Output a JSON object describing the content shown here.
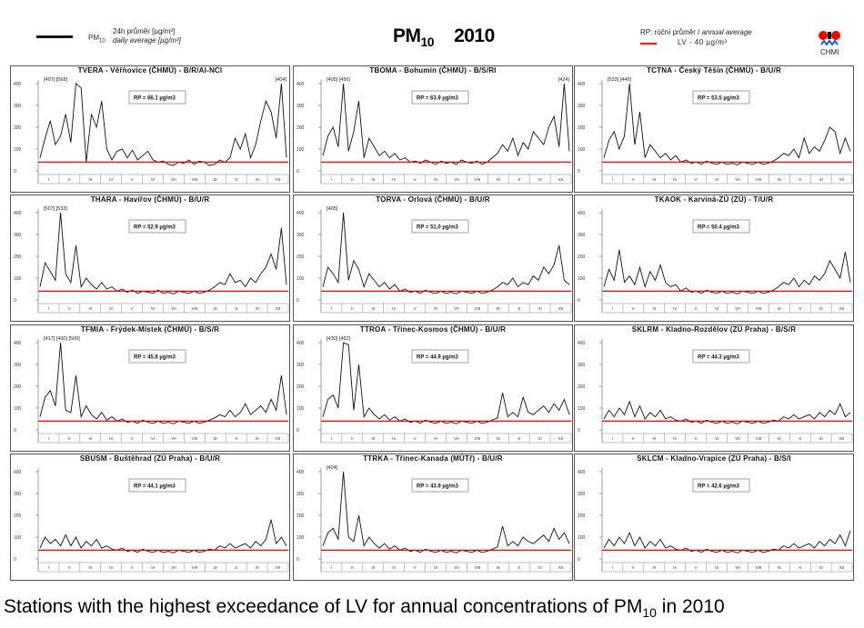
{
  "header": {
    "legend_series_label": "PM",
    "legend_series_sub": "10",
    "legend_cz": "24h průměr [µg/m³]",
    "legend_en": "daily average [µg/m³]",
    "title_main": "PM",
    "title_sub": "10",
    "title_year": "2010",
    "rp_label_cz": "RP: roční průměr / ",
    "rp_label_en": "annual average",
    "lv_label": "LV - 40 µg/m³",
    "logo_text": "CHMI"
  },
  "caption": {
    "text": "Stations with the highest exceedance of LV for annual concentrations of PM",
    "sub": "10",
    "tail": " in 2010"
  },
  "colors": {
    "series": "#111111",
    "limit": "#e00000"
  },
  "chart_data": {
    "type": "line",
    "ylim": [
      0,
      400
    ],
    "yticks": [
      0,
      100,
      200,
      300,
      400
    ],
    "xticks": [
      "I",
      "II",
      "III",
      "IV",
      "V",
      "VI",
      "VII",
      "VIII",
      "IX",
      "X",
      "XI",
      "XII"
    ],
    "limit_value": 40,
    "panels": [
      {
        "title": "TVERA - Věřňovice (ČHMÚ) - B/R/AI-NCI",
        "rp": "RP = 66.1 µg/m3",
        "peaks_left": "[407] [568]",
        "peaks_right": "[404]",
        "values": [
          60,
          150,
          230,
          120,
          160,
          260,
          130,
          400,
          380,
          40,
          260,
          200,
          320,
          100,
          50,
          90,
          100,
          60,
          95,
          50,
          70,
          90,
          50,
          40,
          45,
          30,
          25,
          40,
          35,
          50,
          30,
          45,
          40,
          25,
          30,
          50,
          40,
          60,
          150,
          100,
          170,
          60,
          120,
          230,
          320,
          270,
          150,
          400,
          60
        ]
      },
      {
        "title": "TBOMA - Bohumín (ČHMÚ) - B/S/RI",
        "rp": "RP = 63.9 µg/m3",
        "peaks_left": "[405] [456]",
        "peaks_right": "[424]",
        "values": [
          70,
          160,
          200,
          110,
          400,
          90,
          180,
          320,
          60,
          150,
          110,
          70,
          90,
          60,
          80,
          50,
          60,
          40,
          45,
          35,
          50,
          40,
          30,
          45,
          35,
          40,
          30,
          50,
          40,
          35,
          45,
          30,
          40,
          60,
          80,
          120,
          90,
          150,
          70,
          130,
          100,
          180,
          150,
          120,
          200,
          250,
          110,
          400,
          90
        ]
      },
      {
        "title": "TCTNA - Český Těšín (ČHMÚ) - B/U/R",
        "rp": "RP = 53.5 µg/m3",
        "peaks_left": "[533] [449]",
        "peaks_right": "",
        "values": [
          60,
          140,
          180,
          100,
          160,
          400,
          120,
          270,
          60,
          120,
          90,
          60,
          80,
          50,
          70,
          40,
          50,
          35,
          40,
          30,
          45,
          35,
          30,
          40,
          30,
          35,
          28,
          40,
          35,
          30,
          40,
          30,
          35,
          45,
          60,
          80,
          70,
          100,
          60,
          150,
          80,
          110,
          90,
          140,
          200,
          180,
          80,
          150,
          90
        ]
      },
      {
        "title": "THARA - Havířov (ČHMÚ) - B/U/R",
        "rp": "RP = 52.9 µg/m3",
        "peaks_left": "[507] [533]",
        "peaks_right": "",
        "values": [
          60,
          170,
          130,
          90,
          400,
          120,
          80,
          250,
          60,
          100,
          70,
          50,
          80,
          50,
          60,
          40,
          50,
          35,
          45,
          30,
          40,
          35,
          30,
          45,
          30,
          35,
          28,
          40,
          35,
          30,
          40,
          30,
          35,
          45,
          60,
          80,
          70,
          120,
          80,
          90,
          60,
          100,
          80,
          120,
          150,
          210,
          140,
          330,
          70
        ]
      },
      {
        "title": "TORVA - Orlová (ČHMÚ) - B/U/R",
        "rp": "RP = 51.0 µg/m3",
        "peaks_left": "[405]",
        "peaks_right": "",
        "values": [
          60,
          150,
          120,
          80,
          400,
          90,
          180,
          140,
          60,
          120,
          90,
          60,
          80,
          50,
          70,
          40,
          50,
          35,
          40,
          30,
          45,
          35,
          30,
          40,
          30,
          35,
          28,
          40,
          35,
          30,
          40,
          30,
          35,
          45,
          60,
          80,
          70,
          100,
          60,
          80,
          70,
          110,
          90,
          150,
          120,
          160,
          250,
          90,
          70
        ]
      },
      {
        "title": "TKAOK - Karviná-ZÚ (ZÚ) - T/U/R",
        "rp": "RP = 50.4 µg/m3",
        "peaks_left": "",
        "peaks_right": "",
        "values": [
          60,
          140,
          90,
          230,
          80,
          110,
          70,
          150,
          60,
          130,
          90,
          160,
          80,
          60,
          70,
          40,
          55,
          35,
          40,
          30,
          45,
          35,
          30,
          40,
          30,
          35,
          28,
          40,
          35,
          30,
          40,
          30,
          35,
          45,
          60,
          80,
          70,
          100,
          60,
          90,
          70,
          110,
          90,
          120,
          180,
          140,
          100,
          220,
          80
        ]
      },
      {
        "title": "TFMIA - Frýdek-Místek (ČHMÚ) - B/S/R",
        "rp": "RP = 45.8 µg/m3",
        "peaks_left": "[417] [400] [509]",
        "peaks_right": "",
        "values": [
          60,
          150,
          180,
          110,
          400,
          90,
          80,
          250,
          60,
          110,
          70,
          50,
          80,
          45,
          60,
          40,
          50,
          35,
          40,
          30,
          45,
          35,
          30,
          40,
          30,
          35,
          28,
          40,
          35,
          30,
          40,
          30,
          35,
          45,
          55,
          70,
          60,
          90,
          60,
          80,
          120,
          70,
          90,
          110,
          80,
          140,
          90,
          250,
          70
        ]
      },
      {
        "title": "TTROA - Třinec-Kosmos (ČHMÚ) - B/U/R",
        "rp": "RP = 44.9 µg/m3",
        "peaks_left": "[430] [462]",
        "peaks_right": "",
        "values": [
          60,
          140,
          160,
          100,
          400,
          390,
          90,
          300,
          60,
          100,
          70,
          50,
          70,
          45,
          60,
          40,
          50,
          35,
          40,
          30,
          45,
          35,
          30,
          40,
          30,
          35,
          28,
          40,
          35,
          30,
          40,
          30,
          35,
          45,
          55,
          170,
          60,
          80,
          60,
          150,
          80,
          70,
          90,
          110,
          80,
          120,
          90,
          140,
          70
        ]
      },
      {
        "title": "SKLRM - Kladno-Rozdělov (ZÚ Praha) - B/S/R",
        "rp": "RP = 44.3 µg/m3",
        "peaks_left": "",
        "peaks_right": "",
        "values": [
          50,
          90,
          60,
          100,
          70,
          130,
          60,
          110,
          50,
          80,
          60,
          90,
          50,
          60,
          45,
          40,
          50,
          35,
          40,
          30,
          45,
          35,
          30,
          40,
          30,
          35,
          28,
          40,
          35,
          30,
          40,
          30,
          35,
          45,
          40,
          60,
          50,
          70,
          50,
          60,
          70,
          50,
          80,
          60,
          90,
          70,
          120,
          60,
          80
        ]
      },
      {
        "title": "SBUSM - Buštěhrad (ZÚ Praha) - B/U/R",
        "rp": "RP = 44.1 µg/m3",
        "peaks_left": "",
        "peaks_right": "",
        "values": [
          50,
          100,
          70,
          90,
          60,
          110,
          60,
          100,
          50,
          80,
          60,
          90,
          50,
          60,
          45,
          40,
          50,
          35,
          40,
          30,
          45,
          35,
          30,
          40,
          30,
          35,
          28,
          40,
          35,
          30,
          40,
          30,
          35,
          45,
          40,
          60,
          50,
          70,
          50,
          60,
          70,
          50,
          80,
          60,
          90,
          180,
          70,
          100,
          60
        ]
      },
      {
        "title": "TTRKA - Třinec-Kanada (MÚTř) - B/U/R",
        "rp": "RP = 43.9 µg/m3",
        "peaks_left": "[404]",
        "peaks_right": "",
        "values": [
          60,
          120,
          140,
          90,
          400,
          100,
          80,
          200,
          60,
          100,
          70,
          50,
          70,
          45,
          60,
          40,
          50,
          35,
          40,
          30,
          45,
          35,
          30,
          40,
          30,
          35,
          28,
          40,
          35,
          30,
          40,
          30,
          35,
          45,
          55,
          150,
          60,
          80,
          60,
          100,
          80,
          70,
          90,
          110,
          80,
          140,
          90,
          120,
          70
        ]
      },
      {
        "title": "SKLCM - Kladno-Vrapice (ZÚ Praha) - B/S/I",
        "rp": "RP = 42.6 µg/m3",
        "peaks_left": "",
        "peaks_right": "",
        "values": [
          50,
          90,
          60,
          100,
          70,
          120,
          60,
          100,
          50,
          80,
          60,
          90,
          50,
          60,
          45,
          40,
          50,
          35,
          40,
          30,
          45,
          35,
          30,
          40,
          30,
          35,
          28,
          40,
          35,
          30,
          40,
          30,
          35,
          45,
          40,
          60,
          50,
          70,
          50,
          60,
          70,
          50,
          80,
          60,
          90,
          70,
          110,
          60,
          130
        ]
      }
    ]
  }
}
